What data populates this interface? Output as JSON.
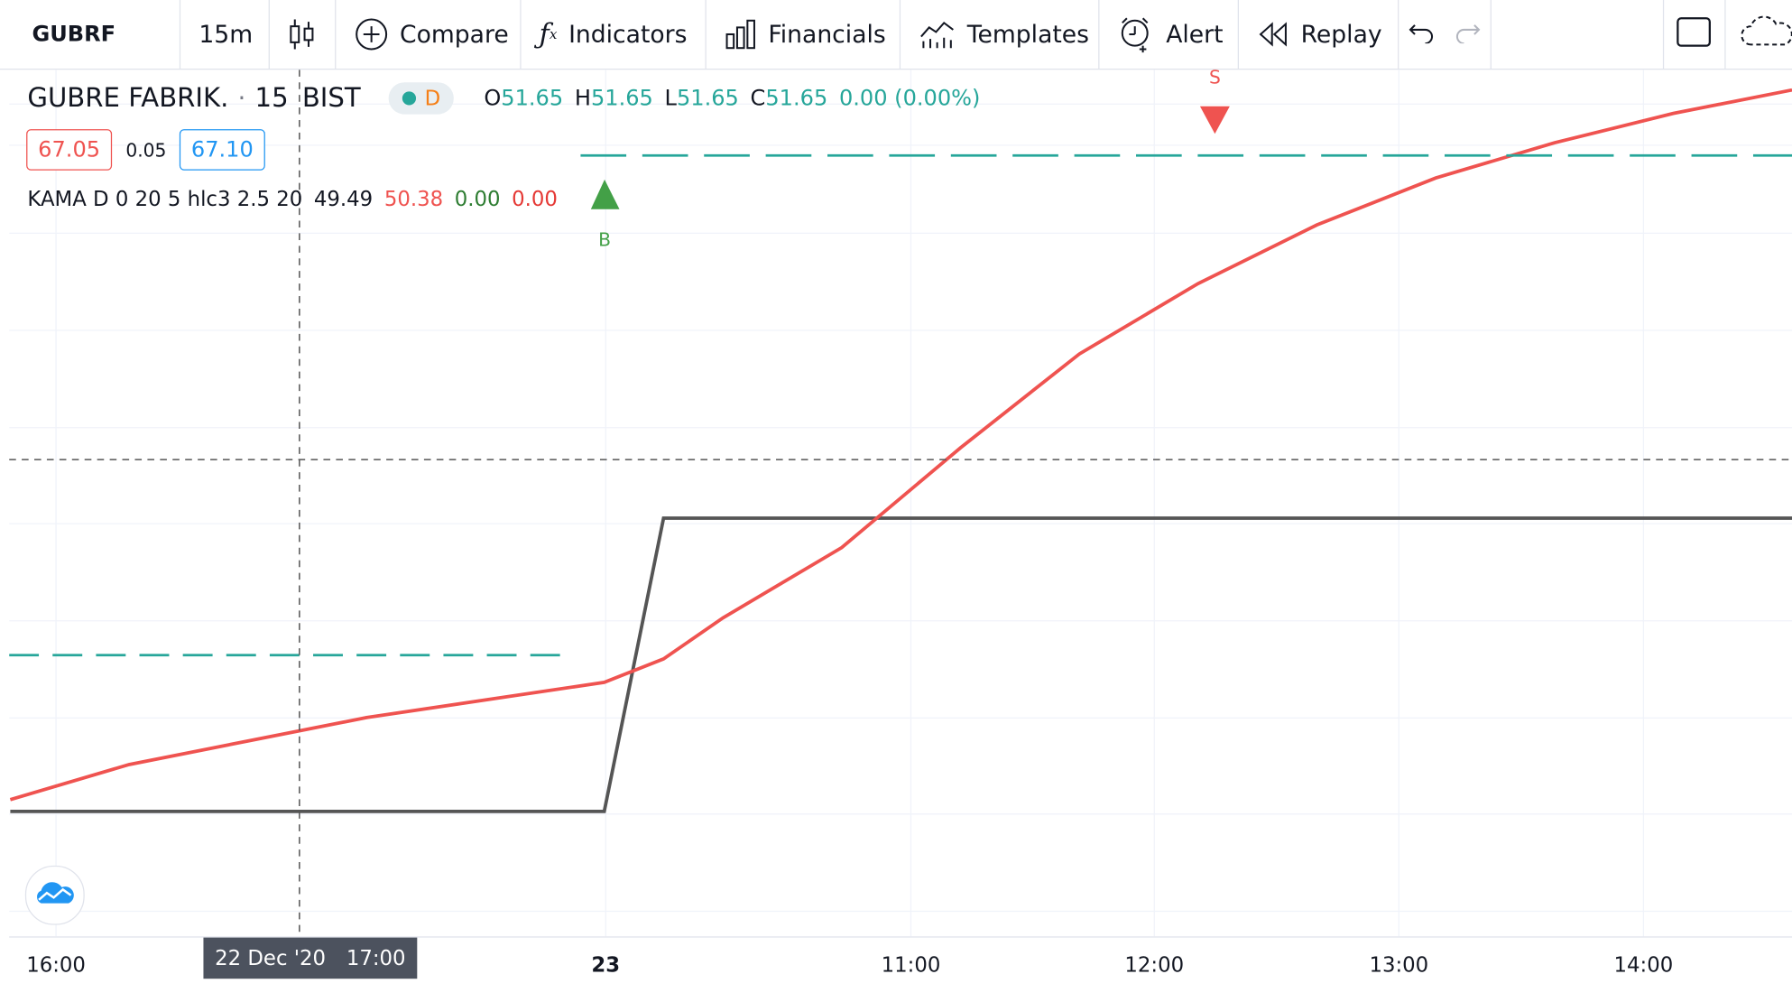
{
  "toolbar": {
    "symbol": "GUBRF",
    "interval": "15m",
    "compare": "Compare",
    "indicators": "Indicators",
    "financials": "Financials",
    "templates": "Templates",
    "alert": "Alert",
    "replay": "Replay"
  },
  "legend": {
    "name": "GUBRE FABRIK.",
    "interval": "15",
    "exchange": "BIST",
    "badge": "D",
    "open_k": "O",
    "open_v": "51.65",
    "high_k": "H",
    "high_v": "51.65",
    "low_k": "L",
    "low_v": "51.65",
    "close_k": "C",
    "close_v": "51.65",
    "change": "0.00 (0.00%)",
    "bid": "67.05",
    "spread": "0.05",
    "ask": "67.10"
  },
  "kama": {
    "label": "KAMA D 0 20 5 hlc3 2.5 20",
    "v1": "49.49",
    "v2": "50.38",
    "v3": "0.00",
    "v4": "0.00"
  },
  "markers": {
    "buy": "B",
    "sell": "S"
  },
  "crosshair": {
    "date": "22 Dec '20",
    "time": "17:00"
  },
  "colors": {
    "price": "#555555",
    "kama": "#ef5350",
    "dash": "#26a69a",
    "buy": "#43a047",
    "sell": "#ef5350"
  },
  "chart_data": {
    "type": "line",
    "x_ticks": [
      "16:00",
      "23",
      "11:00",
      "12:00",
      "13:00",
      "14:00"
    ],
    "series": [
      {
        "points": [
          [
            0.0,
            10.0
          ],
          [
            5.0,
            10.0
          ],
          [
            5.5,
            60.0
          ],
          [
            15.0,
            60.0
          ]
        ]
      },
      {
        "points": [
          [
            0.0,
            12.0
          ],
          [
            1.0,
            18.0
          ],
          [
            2.0,
            22.0
          ],
          [
            3.0,
            26.0
          ],
          [
            4.0,
            29.0
          ],
          [
            5.0,
            32.0
          ],
          [
            5.5,
            36.0
          ],
          [
            6.0,
            43.0
          ],
          [
            7.0,
            55.0
          ],
          [
            8.0,
            72.0
          ],
          [
            9.0,
            88.0
          ],
          [
            10.0,
            100.0
          ],
          [
            11.0,
            110.0
          ],
          [
            12.0,
            118.0
          ],
          [
            13.0,
            124.0
          ],
          [
            14.0,
            129.0
          ],
          [
            15.0,
            133.0
          ]
        ]
      }
    ]
  }
}
